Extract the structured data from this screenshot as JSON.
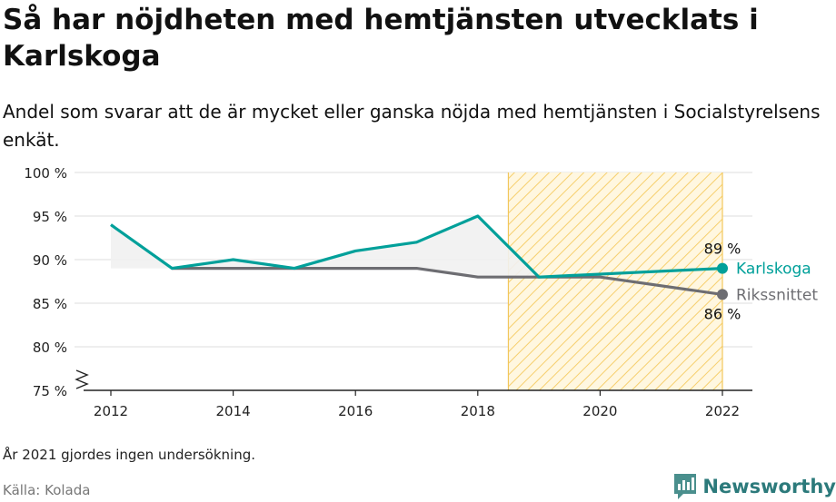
{
  "title": "Så har nöjdheten med hemtjänsten utvecklats i Karlskoga",
  "subtitle": "Andel som svarar att de är mycket eller ganska nöjda med hemtjänsten i Socialstyrelsens enkät.",
  "note": "År 2021 gjordes ingen undersökning.",
  "source": "Källa: Kolada",
  "brand": {
    "name": "Newsworthy",
    "color": "#2c7a7b",
    "icon": "newsworthy-logo-icon"
  },
  "chart_data": {
    "type": "line",
    "xlim": [
      2012,
      2022
    ],
    "ylim": [
      75,
      100
    ],
    "x_ticks": [
      2012,
      2014,
      2016,
      2018,
      2020,
      2022
    ],
    "x_tick_labels": [
      "2012",
      "2014",
      "2016",
      "2018",
      "2020",
      "2022"
    ],
    "y_ticks": [
      75,
      80,
      85,
      90,
      95,
      100
    ],
    "y_tick_labels": [
      "75 %",
      "80 %",
      "85 %",
      "90 %",
      "95 %",
      "100 %"
    ],
    "grid": "horizontal",
    "axis_break": true,
    "highlight_range": [
      2018.5,
      2022
    ],
    "series": [
      {
        "name": "Karlskoga",
        "color": "#00a09a",
        "x": [
          2012,
          2013,
          2014,
          2015,
          2016,
          2017,
          2018,
          2019,
          2022
        ],
        "y": [
          94,
          89,
          90,
          89,
          91,
          92,
          95,
          88,
          89
        ],
        "end_label": "89 %"
      },
      {
        "name": "Rikssnittet",
        "color": "#6d6d72",
        "x": [
          2013,
          2014,
          2015,
          2016,
          2017,
          2018,
          2019,
          2020,
          2022
        ],
        "y": [
          89,
          89,
          89,
          89,
          89,
          88,
          88,
          88,
          86
        ],
        "end_label": "86 %"
      }
    ]
  }
}
